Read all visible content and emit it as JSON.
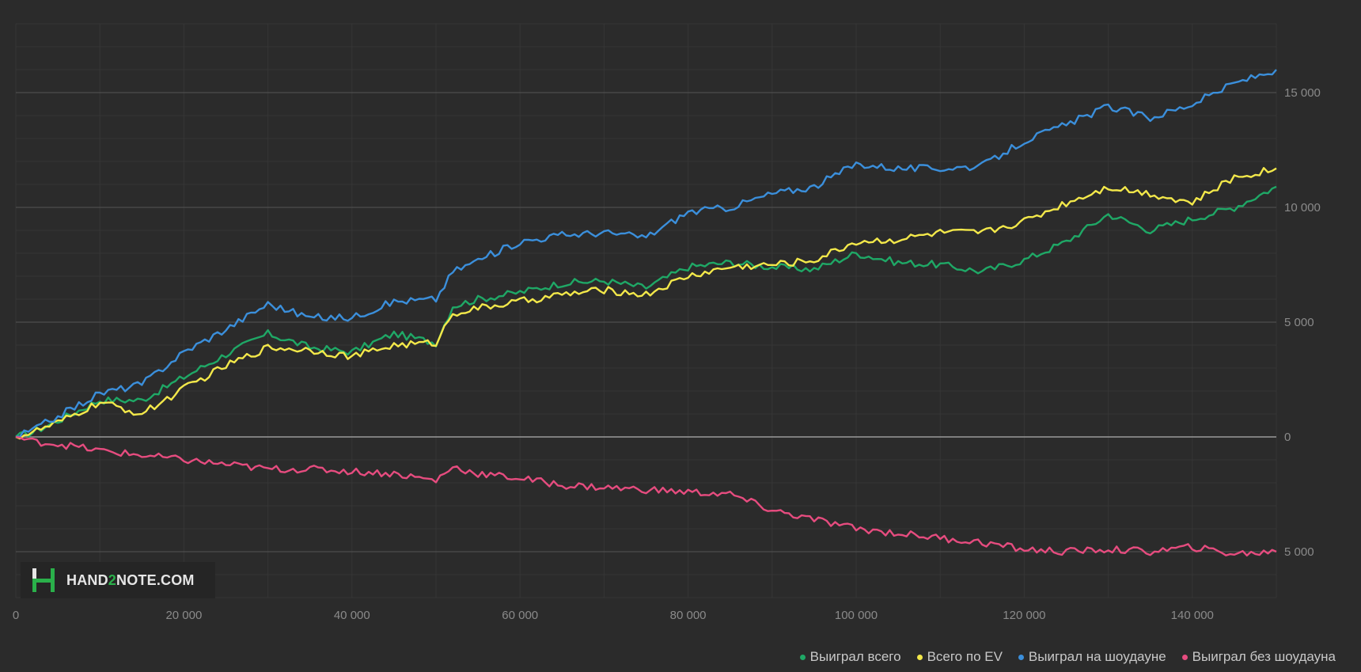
{
  "chart_data": {
    "type": "line",
    "title": "",
    "xlabel": "",
    "ylabel": "",
    "xlim": [
      0,
      150000
    ],
    "ylim": [
      -7000,
      18000
    ],
    "x_ticks": [
      0,
      20000,
      40000,
      60000,
      80000,
      100000,
      120000,
      140000
    ],
    "x_tick_labels": [
      "0",
      "20 000",
      "40 000",
      "60 000",
      "80 000",
      "100 000",
      "120 000",
      "140 000"
    ],
    "y_ticks": [
      15000,
      10000,
      5000,
      0,
      -5000
    ],
    "y_tick_labels": [
      "15 000",
      "10 000",
      "5 000",
      "0",
      "5 000"
    ],
    "grid": true,
    "legend_position": "bottom-right",
    "x": [
      0,
      2000,
      5000,
      10000,
      15000,
      20000,
      25000,
      30000,
      35000,
      40000,
      45000,
      50000,
      52000,
      55000,
      60000,
      65000,
      70000,
      75000,
      80000,
      85000,
      90000,
      95000,
      100000,
      105000,
      110000,
      115000,
      120000,
      125000,
      130000,
      135000,
      140000,
      145000,
      150000
    ],
    "series": [
      {
        "name": "Выиграл всего",
        "color": "#1fa866",
        "values": [
          0,
          200,
          700,
          1600,
          1600,
          2600,
          3600,
          4500,
          3900,
          3700,
          4500,
          4100,
          5700,
          6000,
          6300,
          6700,
          6800,
          6500,
          7400,
          7600,
          7400,
          7300,
          8000,
          7600,
          7500,
          7200,
          7700,
          8500,
          9700,
          9000,
          9500,
          10000,
          10900
        ]
      },
      {
        "name": "Всего по EV",
        "color": "#f3e84a",
        "values": [
          0,
          200,
          600,
          1500,
          1000,
          2100,
          3100,
          3900,
          3800,
          3500,
          4000,
          4100,
          5400,
          5600,
          5900,
          6200,
          6400,
          6200,
          7000,
          7400,
          7500,
          7700,
          8500,
          8600,
          8900,
          8900,
          9400,
          10200,
          10900,
          10600,
          10200,
          11300,
          11700
        ]
      },
      {
        "name": "Выиграл на шоудауне",
        "color": "#3b8fdb",
        "values": [
          0,
          300,
          900,
          1900,
          2300,
          3700,
          4700,
          5800,
          5200,
          5200,
          5900,
          6000,
          7200,
          7700,
          8500,
          8800,
          8900,
          8700,
          9800,
          10000,
          10600,
          10900,
          11900,
          11700,
          11700,
          11800,
          12900,
          13600,
          14400,
          13900,
          14500,
          15400,
          16000
        ]
      },
      {
        "name": "Выиграл без шоудауна",
        "color": "#e64c7f",
        "values": [
          0,
          -200,
          -300,
          -600,
          -800,
          -1000,
          -1200,
          -1400,
          -1400,
          -1500,
          -1600,
          -1900,
          -1300,
          -1600,
          -1800,
          -2100,
          -2200,
          -2300,
          -2400,
          -2500,
          -3200,
          -3600,
          -4000,
          -4200,
          -4400,
          -4600,
          -4900,
          -5000,
          -4900,
          -5000,
          -4800,
          -5100,
          -5000
        ]
      }
    ]
  },
  "logo": {
    "text_a": "HAND",
    "text_accent": "2",
    "text_b": "NOTE.COM"
  }
}
